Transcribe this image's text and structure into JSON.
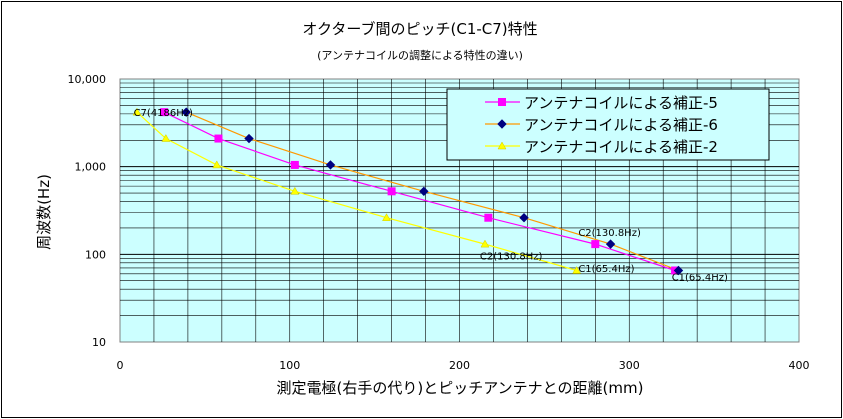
{
  "chart_data": {
    "type": "line",
    "title": "オクターブ間のピッチ(C1-C7)特性",
    "subtitle": "(アンテナコイルの調整による特性の違い)",
    "xlabel": "測定電極(右手の代り)とピッチアンテナとの距離(mm)",
    "ylabel": "周波数(Hz)",
    "xlim": [
      0,
      400
    ],
    "ylim": [
      10,
      10000
    ],
    "yscale": "log",
    "grid": true,
    "legend_position": "top-right",
    "x_ticks": [
      "0",
      "100",
      "200",
      "300",
      "400"
    ],
    "y_ticks": [
      "10",
      "100",
      "1,000",
      "10,000"
    ],
    "series": [
      {
        "name": "アンテナコイルによる補正-5",
        "color": "#ff00ff",
        "marker": "square",
        "x": [
          26,
          58,
          103,
          160,
          217,
          280,
          327
        ],
        "y": [
          4186,
          2093,
          1046.5,
          523.3,
          261.6,
          130.8,
          65.4
        ]
      },
      {
        "name": "アンテナコイルによる補正-6",
        "color": "#000080",
        "marker": "diamond",
        "x": [
          39,
          76,
          124,
          179,
          238,
          289,
          329
        ],
        "y": [
          4186,
          2093,
          1046.5,
          523.3,
          261.6,
          130.8,
          65.4
        ]
      },
      {
        "name": "アンテナコイルによる補正-2",
        "color": "#ffff00",
        "marker": "triangle",
        "x": [
          10,
          27,
          57,
          103,
          157,
          215,
          269
        ],
        "y": [
          4186,
          2093,
          1046.5,
          523.3,
          261.6,
          130.8,
          65.4
        ]
      }
    ],
    "annotations": [
      {
        "text": "C7(4186Hz)",
        "x": 8,
        "y": 4186
      },
      {
        "text": "C2(130.8Hz)",
        "x": 270,
        "y": 180
      },
      {
        "text": "C2(130.8Hz)",
        "x": 212,
        "y": 97
      },
      {
        "text": "C1(65.4Hz)",
        "x": 270,
        "y": 70
      },
      {
        "text": "C1(65.4Hz)",
        "x": 325,
        "y": 56
      }
    ]
  }
}
